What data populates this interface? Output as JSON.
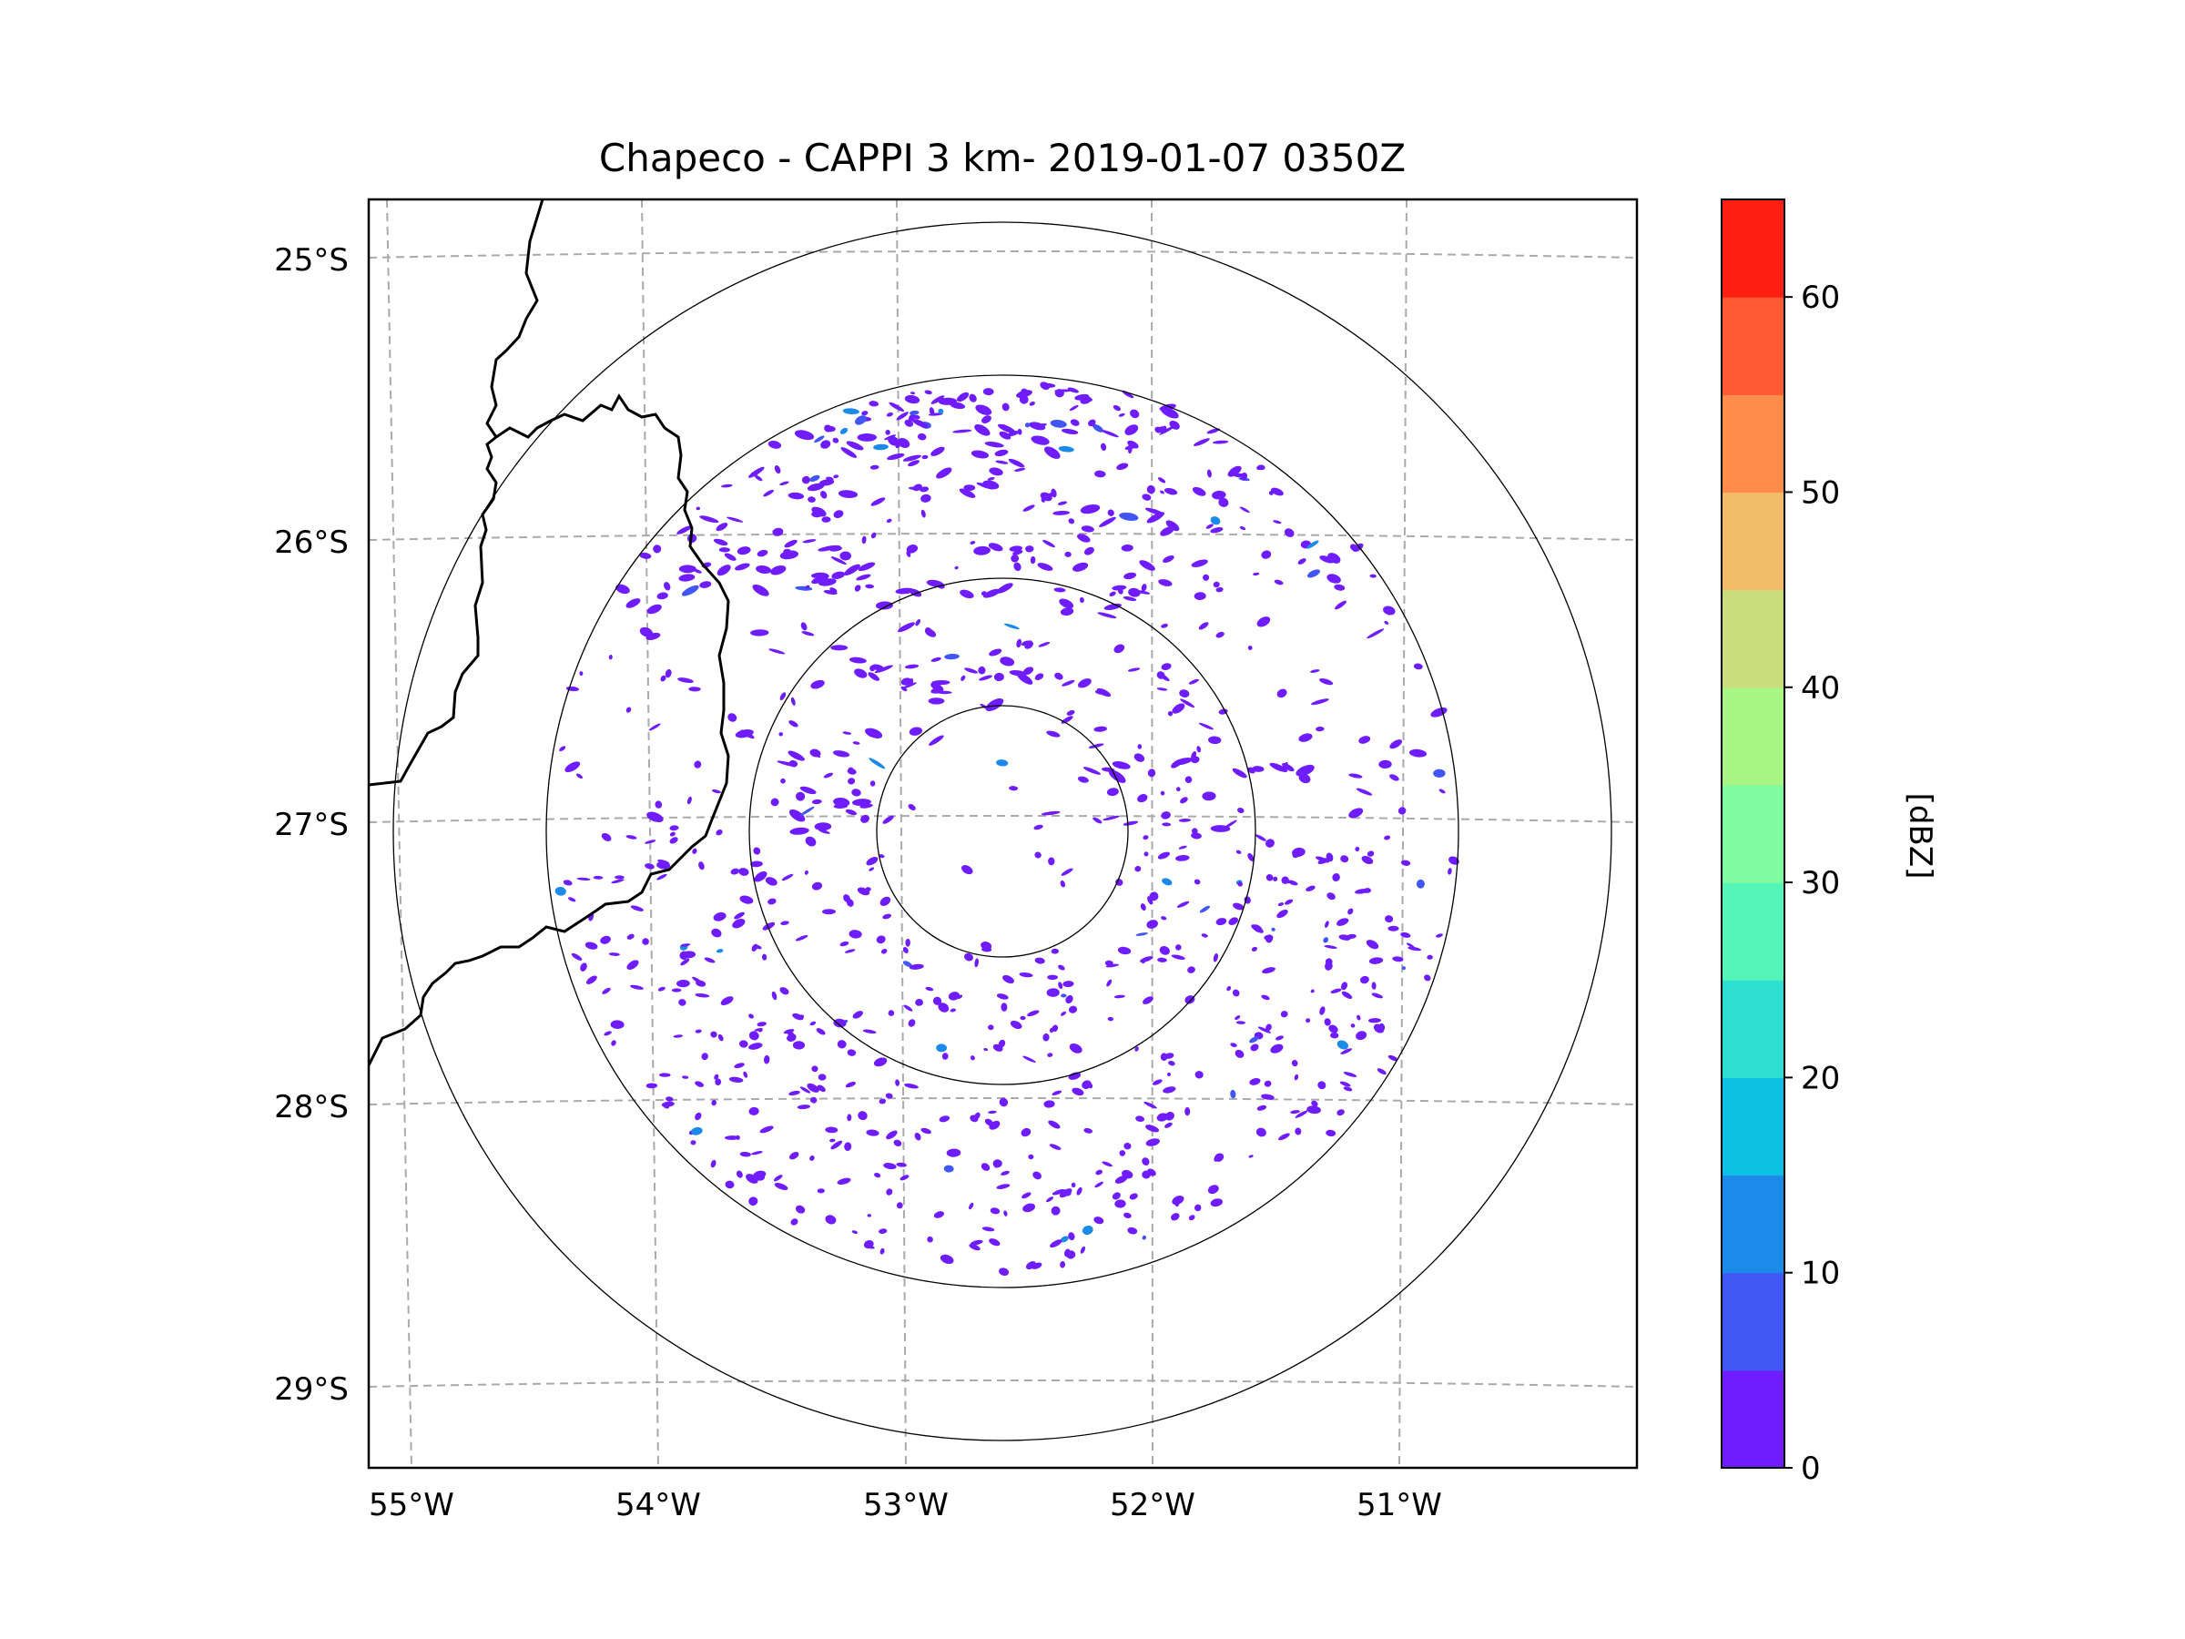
{
  "chart_data": {
    "type": "heatmap",
    "title": "Chapeco - CAPPI 3 km- 2019-01-07 0350Z",
    "radar": {
      "name": "Chapeco",
      "product": "CAPPI",
      "altitude": "3 km",
      "datetime": "2019-01-07 0350Z"
    },
    "map": {
      "lon_range": [
        -55.2,
        -50.1
      ],
      "lat_range": [
        -29.3,
        -24.8
      ],
      "x_ticks": [
        -55,
        -54,
        -53,
        -52,
        -51
      ],
      "x_tick_labels": [
        "55°W",
        "54°W",
        "53°W",
        "52°W",
        "51°W"
      ],
      "y_ticks": [
        -25,
        -26,
        -27,
        -28,
        -29
      ],
      "y_tick_labels": [
        "25°S",
        "26°S",
        "27°S",
        "28°S",
        "29°S"
      ],
      "gridlines": true,
      "range_rings": 4,
      "borders": true
    },
    "colorbar": {
      "label": "[dBZ]",
      "min": 0,
      "max": 65,
      "step": 5,
      "tick_values": [
        0,
        10,
        20,
        30,
        40,
        50,
        60
      ],
      "tick_labels": [
        "0",
        "10",
        "20",
        "30",
        "40",
        "50",
        "60"
      ],
      "colors": [
        "#6f1cff",
        "#4157f5",
        "#1c8ae8",
        "#0cbfe3",
        "#2fe0d2",
        "#55f5b7",
        "#80fda1",
        "#a6f585",
        "#cbdc7c",
        "#f2bc6a",
        "#ff8c4a",
        "#ff5a32",
        "#ff1f12"
      ]
    },
    "echo_summary": "Scattered weak echoes (mostly 0–5 dBZ) within ~250 km of the radar, densest to the north"
  }
}
